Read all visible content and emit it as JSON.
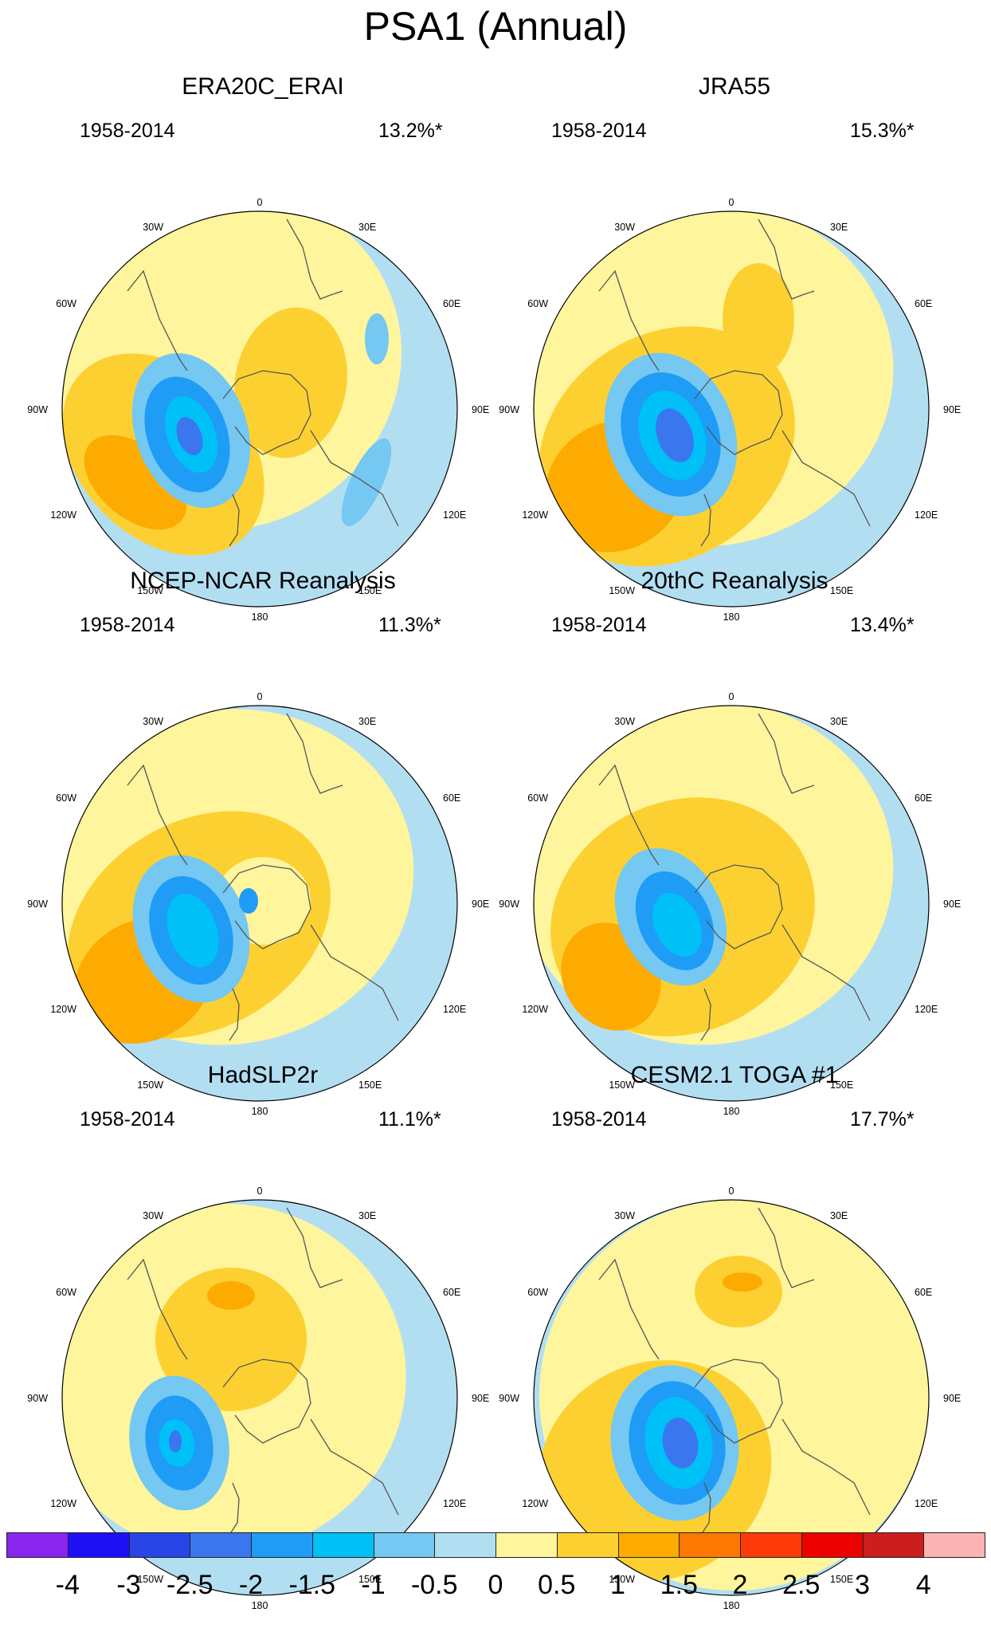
{
  "title": "PSA1 (Annual)",
  "lon_labels": {
    "l0": "0",
    "l30w": "30W",
    "l30e": "30E",
    "l60w": "60W",
    "l60e": "60E",
    "l90w": "90W",
    "l90e": "90E",
    "l120w": "120W",
    "l120e": "120E",
    "l150w": "150W",
    "l150e": "150E",
    "l180": "180"
  },
  "panels": [
    {
      "title": "ERA20C_ERAI",
      "years": "1958-2014",
      "variance": "13.2%*"
    },
    {
      "title": "JRA55",
      "years": "1958-2014",
      "variance": "15.3%*"
    },
    {
      "title": "NCEP-NCAR Reanalysis",
      "years": "1958-2014",
      "variance": "11.3%*"
    },
    {
      "title": "20thC Reanalysis",
      "years": "1958-2014",
      "variance": "13.4%*"
    },
    {
      "title": "HadSLP2r",
      "years": "1958-2014",
      "variance": "11.1%*"
    },
    {
      "title": "CESM2.1 TOGA #1",
      "years": "1958-2014",
      "variance": "17.7%*"
    }
  ],
  "colorbar": {
    "ticks": [
      "-4",
      "-3",
      "-2.5",
      "-2",
      "-1.5",
      "-1",
      "-0.5",
      "0",
      "0.5",
      "1",
      "1.5",
      "2",
      "2.5",
      "3",
      "4"
    ],
    "colors": [
      "#8a25f0",
      "#1d10f5",
      "#2a45e6",
      "#3a77ee",
      "#1e9cf6",
      "#00c0f8",
      "#74c8f2",
      "#b2def2",
      "#fef59c",
      "#fdd031",
      "#fdab00",
      "#fd7703",
      "#fd3a0a",
      "#ec0000",
      "#cd1d1d",
      "#fcb3b3"
    ]
  },
  "colors": {
    "ocean_neutral": "#b2def2",
    "pos1": "#fef59c",
    "pos2": "#fdd031",
    "pos3": "#fdab00",
    "neg1": "#74c8f2",
    "neg2": "#1e9cf6",
    "neg3": "#00c0f8",
    "neg4": "#3a77ee",
    "coast": "#555555"
  }
}
